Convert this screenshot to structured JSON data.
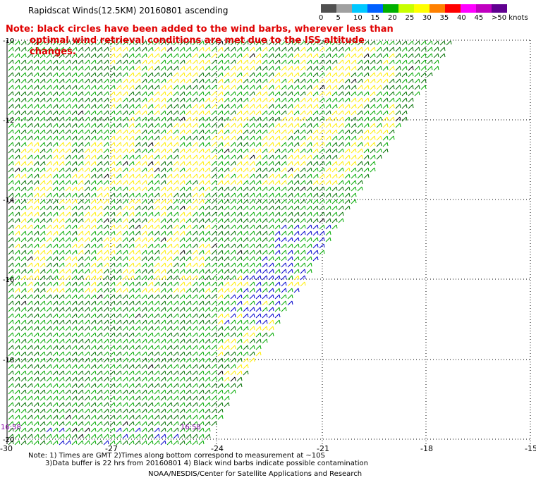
{
  "header": {
    "title": "Rapidscat Winds(12.5KM) 20160801 ascending",
    "note_line1": "Note: black circles have been added to the wind barbs, wherever less than",
    "note_line2": "optimal wind retrieval conditions are met due to the ISS altitude changes."
  },
  "colorbar": {
    "ticks": [
      "0",
      "5",
      "10",
      "15",
      "20",
      "25",
      "30",
      "35",
      "40",
      "45",
      ">50 knots"
    ],
    "colors": [
      "#505050",
      "#a0a0a0",
      "#00c8ff",
      "#0060ff",
      "#00b000",
      "#c8ff00",
      "#ffff00",
      "#ff8000",
      "#ff0000",
      "#ff00ff",
      "#c000c0",
      "#600090"
    ]
  },
  "axes": {
    "x_ticks": [
      "-30",
      "-27",
      "-24",
      "-21",
      "-18",
      "-15"
    ],
    "y_ticks": [
      "-10",
      "-12",
      "-14",
      "-16",
      "-18",
      "-20"
    ],
    "time_labels": [
      "16:58",
      "16:58"
    ]
  },
  "footer": {
    "line1": "Note: 1) Times are GMT 2)Times along bottom correspond to measurement at ~10S",
    "line2": "3)Data buffer is 22 hrs from 20160801 4) Black wind barbs indicate possible contamination",
    "credit": "NOAA/NESDIS/Center for Satellite Applications and Research"
  }
}
